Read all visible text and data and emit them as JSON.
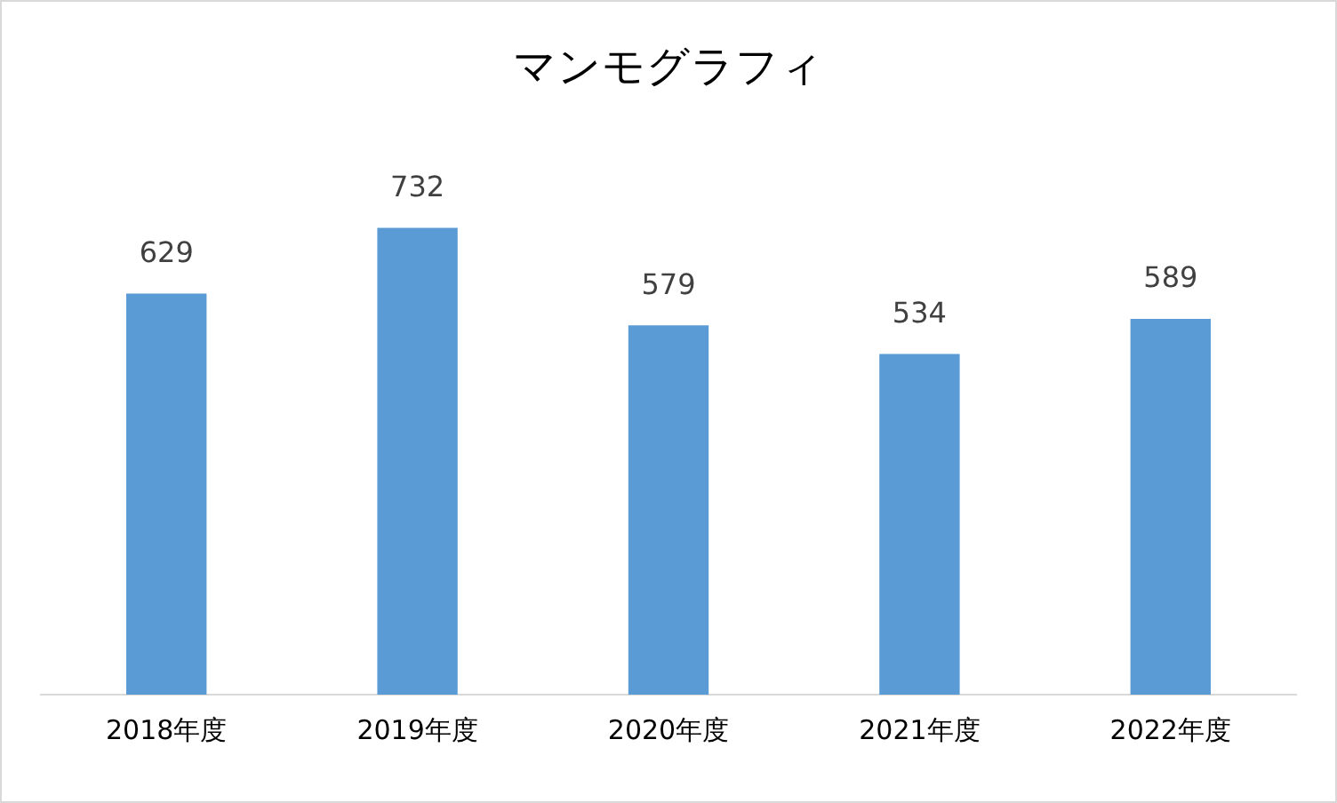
{
  "chart_data": {
    "type": "bar",
    "title": "マンモグラフィ",
    "categories": [
      "2018年度",
      "2019年度",
      "2020年度",
      "2021年度",
      "2022年度"
    ],
    "values": [
      629,
      732,
      579,
      534,
      589
    ],
    "color": "#5b9bd5",
    "data_labels": true,
    "grid": false,
    "legend": false
  }
}
